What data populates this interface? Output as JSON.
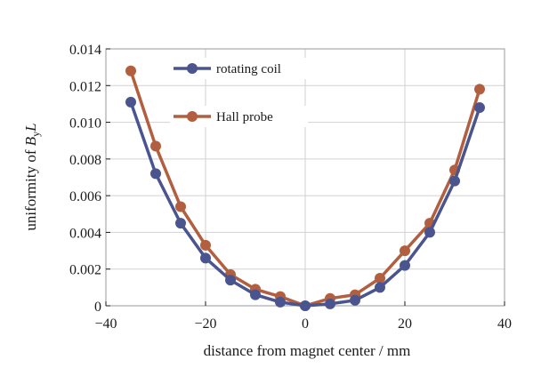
{
  "chart_data": {
    "type": "line",
    "title": "",
    "xlabel": "distance from magnet center / mm",
    "ylabel": {
      "prefix": "uniformity of ",
      "var": "B",
      "sub": "y",
      "suffix": "L"
    },
    "xlim": [
      -40,
      40
    ],
    "ylim": [
      0,
      0.014
    ],
    "xticks": [
      -40,
      -20,
      0,
      20,
      40
    ],
    "xtick_labels": [
      "−40",
      "−20",
      "0",
      "20",
      "40"
    ],
    "yticks": [
      0,
      0.002,
      0.004,
      0.006,
      0.008,
      0.01,
      0.012,
      0.014
    ],
    "ytick_labels": [
      "0",
      "0.002",
      "0.004",
      "0.006",
      "0.008",
      "0.010",
      "0.012",
      "0.014"
    ],
    "grid": true,
    "legend_position": "top-left",
    "x": [
      -35,
      -30,
      -25,
      -20,
      -15,
      -10,
      -5,
      0,
      5,
      10,
      15,
      20,
      25,
      30,
      35
    ],
    "series": [
      {
        "name": "rotating coil",
        "color": "#4a5590",
        "values": [
          0.0111,
          0.0072,
          0.0045,
          0.0026,
          0.0014,
          0.0006,
          0.0002,
          0.0,
          0.0001,
          0.0003,
          0.001,
          0.0022,
          0.004,
          0.0068,
          0.0108
        ]
      },
      {
        "name": "Hall probe",
        "color": "#b25f3f",
        "values": [
          0.0128,
          0.0087,
          0.0054,
          0.0033,
          0.0017,
          0.0009,
          0.0005,
          0.0,
          0.0004,
          0.0006,
          0.0015,
          0.003,
          0.0045,
          0.0074,
          0.0118
        ]
      }
    ]
  }
}
